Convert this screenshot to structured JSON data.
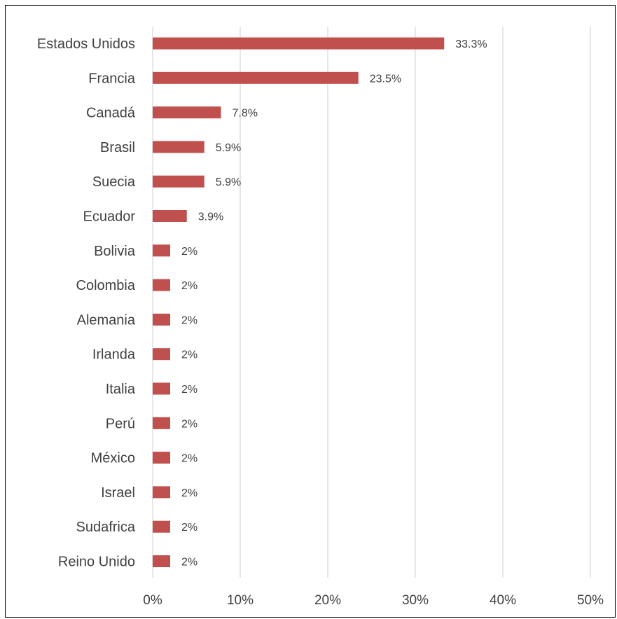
{
  "chart_data": {
    "type": "bar",
    "orientation": "horizontal",
    "categories": [
      "Estados Unidos",
      "Francia",
      "Canadá",
      "Brasil",
      "Suecia",
      "Ecuador",
      "Bolivia",
      "Colombia",
      "Alemania",
      "Irlanda",
      "Italia",
      "Perú",
      "México",
      "Israel",
      "Sudafrica",
      "Reino Unido"
    ],
    "values": [
      33.3,
      23.5,
      7.8,
      5.9,
      5.9,
      3.9,
      2,
      2,
      2,
      2,
      2,
      2,
      2,
      2,
      2,
      2
    ],
    "data_labels": [
      "33.3%",
      "23.5%",
      "7.8%",
      "5.9%",
      "5.9%",
      "3.9%",
      "2%",
      "2%",
      "2%",
      "2%",
      "2%",
      "2%",
      "2%",
      "2%",
      "2%",
      "2%"
    ],
    "x_ticks": [
      0,
      10,
      20,
      30,
      40,
      50
    ],
    "x_tick_labels": [
      "0%",
      "10%",
      "20%",
      "30%",
      "40%",
      "50%"
    ],
    "xlim": [
      0,
      50
    ],
    "title": "",
    "xlabel": "",
    "ylabel": "",
    "grid": "vertical",
    "legend": "none",
    "colors": {
      "bar": "#c0504d",
      "grid": "#d9d9d9",
      "text": "#404040"
    }
  }
}
